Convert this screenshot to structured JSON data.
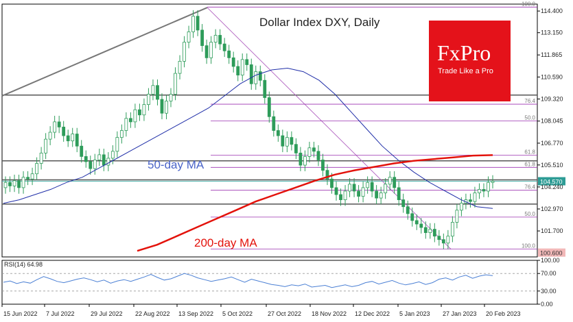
{
  "chart_data": [
    {
      "type": "candlestick",
      "title": "Dollar Index DXY, Daily",
      "ylim": [
        100.2,
        114.8
      ],
      "y_ticks": [
        "114.400",
        "113.150",
        "111.865",
        "110.590",
        "109.320",
        "108.045",
        "106.770",
        "105.510",
        "104.240",
        "102.970",
        "101.700"
      ],
      "x_ticks": [
        "15 Jun 2022",
        "7 Jul 2022",
        "29 Jul 2022",
        "22 Aug 2022",
        "13 Sep 2022",
        "5 Oct 2022",
        "27 Oct 2022",
        "18 Nov 2022",
        "12 Dec 2022",
        "5 Jan 2023",
        "27 Jan 2023",
        "20 Feb 2023"
      ],
      "price_label": "104.570",
      "low_label": "100.600",
      "horizontal_levels": [
        109.55,
        105.75,
        104.65,
        103.25
      ],
      "fib_upper": {
        "levels": [
          {
            "label": "100.0",
            "value": 114.63
          },
          {
            "label": "76.4",
            "value": 109.02
          },
          {
            "label": "50.0",
            "value": 108.05
          },
          {
            "label": "61.8",
            "value": 106.08
          }
        ]
      },
      "fib_lower": {
        "levels": [
          {
            "label": "61.8",
            "value": 105.37
          },
          {
            "label": "76.4",
            "value": 104.05
          },
          {
            "label": "50.0",
            "value": 102.5
          },
          {
            "label": "100.0",
            "value": 100.65
          }
        ]
      },
      "annotations": [
        "50-day MA",
        "200-day MA"
      ],
      "series": [
        {
          "type": "candles",
          "values": [
            104.5,
            104.3,
            104.6,
            104.2,
            104.8,
            104.7,
            105.0,
            105.6,
            106.2,
            107.0,
            107.4,
            108.0,
            107.7,
            107.2,
            106.9,
            107.3,
            106.6,
            106.0,
            105.7,
            105.3,
            105.8,
            106.1,
            105.5,
            105.9,
            106.3,
            107.1,
            107.5,
            108.2,
            108.0,
            108.7,
            108.4,
            109.0,
            109.6,
            110.1,
            109.3,
            108.5,
            109.2,
            109.6,
            110.8,
            111.5,
            112.6,
            113.2,
            114.1,
            113.3,
            112.4,
            111.7,
            112.6,
            113.0,
            112.5,
            112.1,
            111.7,
            111.2,
            110.7,
            111.6,
            111.3,
            110.2,
            110.9,
            110.4,
            109.4,
            108.3,
            107.5,
            107.2,
            106.6,
            107.1,
            106.7,
            106.2,
            105.5,
            106.0,
            106.5,
            106.3,
            105.8,
            105.2,
            104.7,
            104.2,
            103.8,
            103.5,
            104.0,
            104.4,
            104.0,
            103.7,
            104.2,
            104.5,
            104.0,
            103.6,
            103.9,
            104.4,
            104.8,
            104.2,
            103.5,
            103.1,
            102.7,
            102.3,
            102.1,
            101.9,
            101.6,
            101.8,
            101.4,
            101.2,
            101.0,
            101.4,
            102.2,
            102.9,
            103.3,
            103.5,
            103.4,
            103.9,
            104.1,
            104.0,
            104.5,
            104.57
          ]
        },
        {
          "name": "50-day MA",
          "values": [
            103.3,
            103.5,
            103.8,
            104.1,
            104.5,
            104.8,
            105.3,
            105.8,
            106.3,
            106.8,
            107.3,
            107.8,
            108.3,
            108.8,
            109.5,
            110.2,
            110.7,
            111.0,
            111.1,
            110.9,
            110.4,
            109.6,
            108.6,
            107.6,
            106.6,
            105.8,
            105.1,
            104.5,
            104.0,
            103.5,
            103.1,
            103.0
          ]
        },
        {
          "name": "200-day MA",
          "values": [
            100.55,
            100.9,
            101.4,
            101.9,
            102.4,
            102.9,
            103.4,
            103.8,
            104.2,
            104.6,
            104.95,
            105.2,
            105.4,
            105.6,
            105.75,
            105.85,
            105.95,
            106.05,
            106.08
          ]
        }
      ]
    },
    {
      "type": "line",
      "title": "RSI(14) 64.98",
      "ylim": [
        0,
        100
      ],
      "y_ticks": [
        "100.00",
        "70.00",
        "30.00",
        "0.00"
      ],
      "levels": [
        70,
        30
      ],
      "series": [
        {
          "values": [
            50,
            53,
            47,
            51,
            48,
            56,
            63,
            58,
            52,
            49,
            53,
            57,
            60,
            56,
            51,
            55,
            48,
            53,
            56,
            52,
            57,
            62,
            68,
            61,
            55,
            58,
            64,
            70,
            66,
            60,
            56,
            52,
            55,
            58,
            62,
            56,
            50,
            57,
            53,
            49,
            45,
            43,
            40,
            44,
            42,
            46,
            39,
            41,
            43,
            38,
            41,
            44,
            40,
            43,
            49,
            52,
            46,
            50,
            54,
            48,
            44,
            47,
            51,
            45,
            49,
            57,
            60,
            55,
            62,
            66,
            59,
            64,
            67,
            65
          ]
        }
      ]
    }
  ],
  "logo": {
    "brand": "FxPro",
    "tagline": "Trade Like a Pro",
    "color": "#e4121a"
  },
  "colors": {
    "ma50": "#1f2ea8",
    "ma200": "#e3120b",
    "fib": "#9b30b0",
    "candle_up": "#2e9c5a",
    "candle_down": "#2e9c5a",
    "rsi": "#4a7fd4",
    "hline": "#555555"
  }
}
